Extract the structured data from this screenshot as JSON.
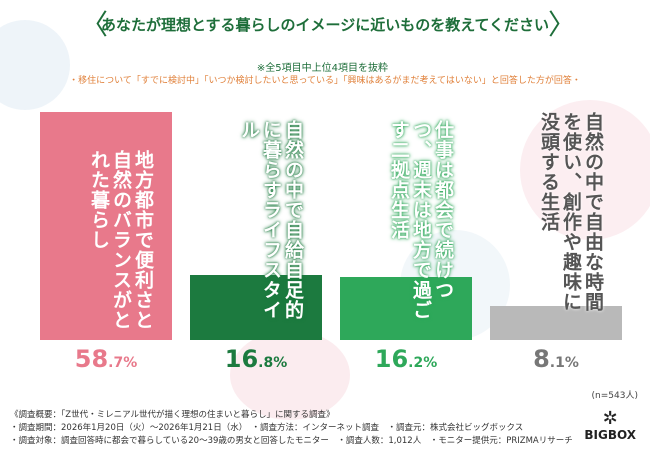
{
  "header": {
    "title": "あなたが理想とする暮らしのイメージに近いものを教えてください",
    "note": "※全5項目中上位4項目を抜粋",
    "subtitle": "・移住について「すでに検討中」「いつか検討したいと思っている」「興味はあるがまだ考えてはいない」と回答した方が回答・"
  },
  "chart_data": {
    "type": "bar",
    "title": "あなたが理想とする暮らしのイメージに近いものを教えてください",
    "categories": [
      "地方都市で便利さと自然のバランスがとれた暮らし",
      "自然の中で自給自足的に暮らすライフスタイル",
      "仕事は都会で続けつつ、週末は地方で過ごす二拠点生活",
      "自然の中で自由な時間を使い、創作や趣味に没頭する生活"
    ],
    "values": [
      58.7,
      16.8,
      16.2,
      8.1
    ],
    "unit": "%",
    "colors": [
      "#e8798b",
      "#1c7a3f",
      "#2ea85a",
      "#b9b9b9"
    ],
    "label_colors": [
      "#ffffff",
      "#1c6e38",
      "#1c8a48",
      "#555555"
    ],
    "pct_colors": [
      "#e8798b",
      "#1c7a3f",
      "#2ea85a",
      "#777777"
    ],
    "ylim": [
      0,
      60
    ]
  },
  "n_label": "(n=543人)",
  "footer": [
    "《調査概要：「Z世代・ミレニアル世代が描く理想の住まいと暮らし」に関する調査》",
    "・調査期間：2026年1月20日（火）～2026年1月21日（水）　・調査方法：インターネット調査　・調査元：株式会社ビッグボックス",
    "・調査対象：調査回答時に都会で暮らしている20～39歳の男女と回答したモニター　・調査人数：1,012人　・モニター提供元：PRIZMAリサーチ"
  ],
  "logo": "BIGBOX"
}
